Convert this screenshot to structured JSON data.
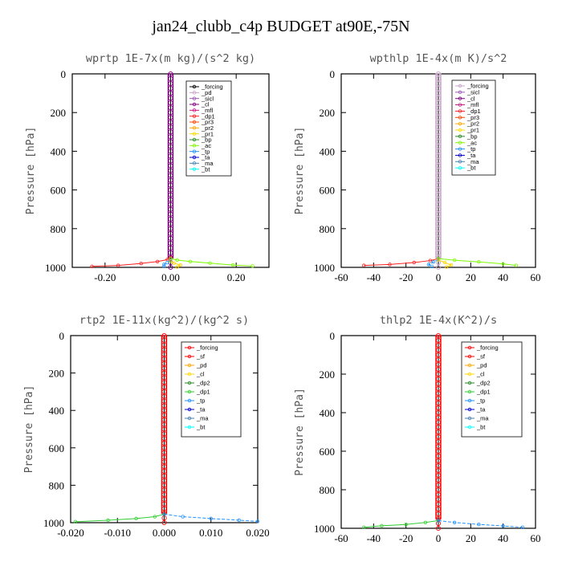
{
  "title": "jan24_clubb_c4p  BUDGET at90E,-75N",
  "colors": {
    "forcing": "#000000",
    "sf": "#ff0000",
    "pd": "#c8a2c8",
    "sicl": "#9b59b6",
    "cl": "#800080",
    "mfl": "#c71585",
    "dp1": "#ff2020",
    "dp2": "#228b22",
    "dp1b": "#32cd32",
    "pr3": "#ff4500",
    "pr2": "#ffa500",
    "pr1": "#ffd700",
    "bp": "#228b22",
    "ac": "#7cfc00",
    "tp": "#1e90ff",
    "ta": "#0000cd",
    "ma": "#4682b4",
    "bt": "#00ffff",
    "line": "#ff0000",
    "pd2": "#ffa500",
    "cl2": "#ffd700"
  },
  "chart_data": [
    {
      "id": "wprtp",
      "type": "line",
      "title": "wprtp  1E-7x(m kg)/(s^2 kg)",
      "ylabel": "Pressure [hPa]",
      "xlim": [
        -0.3,
        0.3
      ],
      "ylim": [
        1000,
        0
      ],
      "xticks": [
        -0.2,
        0.0,
        0.2
      ],
      "xtick_labels": [
        "-0.20",
        "0.00",
        "0.20"
      ],
      "yticks": [
        0,
        200,
        400,
        600,
        800,
        1000
      ],
      "ytick_labels": [
        "0",
        "200",
        "400",
        "600",
        "800",
        "1000"
      ],
      "legend": [
        "_forcing",
        "_pd",
        "_sicl",
        "_cl",
        "_mfl",
        "_dp1",
        "_pr3",
        "_pr2",
        "_pr1",
        "_bp",
        "_ac",
        "_tp",
        "_ta",
        "_ma",
        "_bt"
      ],
      "legend_colors": [
        "forcing",
        "pd",
        "sicl",
        "cl",
        "mfl",
        "dp1",
        "pr3",
        "pr2",
        "pr1",
        "bp",
        "ac",
        "tp",
        "ta",
        "ma",
        "bt"
      ],
      "series": [
        {
          "name": "_dp1",
          "color": "dp1",
          "x": [
            0.0,
            -0.01,
            -0.04,
            -0.09,
            -0.16,
            -0.24
          ],
          "y": [
            950,
            960,
            970,
            980,
            990,
            995
          ]
        },
        {
          "name": "_ac",
          "color": "ac",
          "x": [
            0.0,
            0.02,
            0.06,
            0.12,
            0.19,
            0.25
          ],
          "y": [
            955,
            962,
            970,
            978,
            988,
            993
          ]
        },
        {
          "name": "_tp",
          "color": "tp",
          "x": [
            0.0,
            -0.01,
            -0.02,
            -0.02
          ],
          "y": [
            965,
            975,
            985,
            995
          ]
        },
        {
          "name": "_pr1",
          "color": "pr1",
          "x": [
            0.0,
            0.01,
            0.03,
            0.02
          ],
          "y": [
            968,
            978,
            988,
            998
          ]
        }
      ],
      "col_color": "cl"
    },
    {
      "id": "wpthlp",
      "type": "line",
      "title": "wpthlp  1E-4x(m K)/s^2",
      "ylabel": "Pressure [hPa]",
      "xlim": [
        -60,
        60
      ],
      "ylim": [
        1000,
        0
      ],
      "xticks": [
        -60,
        -40,
        -20,
        0,
        20,
        40,
        60
      ],
      "xtick_labels": [
        "-60",
        "-40",
        "-20",
        "0",
        "20",
        "40",
        "60"
      ],
      "yticks": [
        0,
        200,
        400,
        600,
        800,
        1000
      ],
      "ytick_labels": [
        "0",
        "200",
        "400",
        "600",
        "800",
        "1000"
      ],
      "legend": [
        "_forcing",
        "_sicl",
        "_cl",
        "_mfl",
        "_dp1",
        "_pr3",
        "_pr2",
        "_pr1",
        "_bp",
        "_ac",
        "_tp",
        "_ta",
        "_ma",
        "_bt"
      ],
      "legend_colors": [
        "pd",
        "sicl",
        "cl",
        "mfl",
        "dp1",
        "pr3",
        "pr2",
        "pr1",
        "bp",
        "ac",
        "tp",
        "ta",
        "ma",
        "bt"
      ],
      "series": [
        {
          "name": "_dp1",
          "color": "dp1",
          "x": [
            0,
            -5,
            -15,
            -30,
            -46
          ],
          "y": [
            955,
            965,
            975,
            985,
            990
          ]
        },
        {
          "name": "_ac",
          "color": "ac",
          "x": [
            0,
            10,
            25,
            40,
            48
          ],
          "y": [
            955,
            963,
            972,
            982,
            990
          ]
        },
        {
          "name": "_tp",
          "color": "tp",
          "x": [
            0,
            -3,
            -6,
            -4
          ],
          "y": [
            960,
            972,
            985,
            995
          ]
        },
        {
          "name": "_pr1",
          "color": "pr1",
          "x": [
            0,
            4,
            8,
            5
          ],
          "y": [
            962,
            975,
            988,
            998
          ]
        }
      ],
      "col_color": "pd"
    },
    {
      "id": "rtp2",
      "type": "line",
      "title": "rtp2  1E-11x(kg^2)/(kg^2 s)",
      "ylabel": "Pressure [hPa]",
      "xlim": [
        -0.02,
        0.02
      ],
      "ylim": [
        1000,
        0
      ],
      "xticks": [
        -0.02,
        -0.01,
        0.0,
        0.01,
        0.02
      ],
      "xtick_labels": [
        "-0.020",
        "-0.010",
        "0.000",
        "0.010",
        "0.020"
      ],
      "yticks": [
        0,
        200,
        400,
        600,
        800,
        1000
      ],
      "ytick_labels": [
        "0",
        "200",
        "400",
        "600",
        "800",
        "1000"
      ],
      "legend": [
        "_forcing",
        "_sf",
        "_pd",
        "_cl",
        "_dp2",
        "_dp1",
        "_tp",
        "_ta",
        "_ma",
        "_bt"
      ],
      "legend_colors": [
        "line",
        "sf",
        "pd2",
        "cl2",
        "dp2",
        "dp1b",
        "tp",
        "ta",
        "ma",
        "bt"
      ],
      "series": [
        {
          "name": "_dp1",
          "color": "dp1b",
          "x": [
            0.0,
            -0.002,
            -0.006,
            -0.012,
            -0.019
          ],
          "y": [
            955,
            968,
            978,
            987,
            995
          ]
        },
        {
          "name": "_tp",
          "color": "tp",
          "x": [
            0.0,
            0.004,
            0.01,
            0.016,
            0.02
          ],
          "y": [
            955,
            968,
            978,
            987,
            993
          ]
        }
      ],
      "col_color": "line"
    },
    {
      "id": "thlp2",
      "type": "line",
      "title": "thlp2  1E-4x(K^2)/s",
      "ylabel": "Pressure [hPa]",
      "xlim": [
        -60,
        60
      ],
      "ylim": [
        1000,
        0
      ],
      "xticks": [
        -60,
        -40,
        -20,
        0,
        20,
        40,
        60
      ],
      "xtick_labels": [
        "-60",
        "-40",
        "-20",
        "0",
        "20",
        "40",
        "60"
      ],
      "yticks": [
        0,
        200,
        400,
        600,
        800,
        1000
      ],
      "ytick_labels": [
        "0",
        "200",
        "400",
        "600",
        "800",
        "1000"
      ],
      "legend": [
        "_forcing",
        "_sf",
        "_pd",
        "_cl",
        "_dp2",
        "_dp1",
        "_tp",
        "_ta",
        "_ma",
        "_bt"
      ],
      "legend_colors": [
        "line",
        "sf",
        "pd2",
        "cl2",
        "dp2",
        "dp1b",
        "tp",
        "ta",
        "ma",
        "bt"
      ],
      "series": [
        {
          "name": "_dp1",
          "color": "dp1b",
          "x": [
            0,
            -8,
            -20,
            -35,
            -46
          ],
          "y": [
            960,
            970,
            980,
            987,
            995
          ]
        },
        {
          "name": "_tp",
          "color": "tp",
          "x": [
            0,
            10,
            25,
            40,
            52
          ],
          "y": [
            960,
            970,
            980,
            988,
            995
          ]
        }
      ],
      "col_color": "line"
    }
  ]
}
